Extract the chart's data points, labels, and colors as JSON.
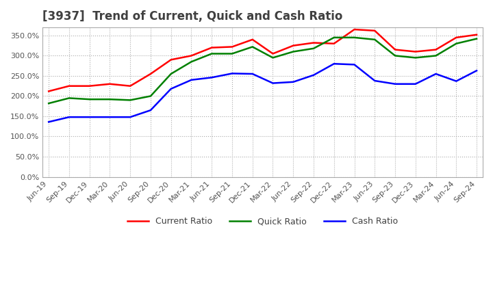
{
  "title": "[3937]  Trend of Current, Quick and Cash Ratio",
  "x_labels": [
    "Jun-19",
    "Sep-19",
    "Dec-19",
    "Mar-20",
    "Jun-20",
    "Sep-20",
    "Dec-20",
    "Mar-21",
    "Jun-21",
    "Sep-21",
    "Dec-21",
    "Mar-22",
    "Jun-22",
    "Sep-22",
    "Dec-22",
    "Mar-23",
    "Jun-23",
    "Sep-23",
    "Dec-23",
    "Mar-24",
    "Jun-24",
    "Sep-24"
  ],
  "current_ratio": [
    212,
    225,
    225,
    230,
    225,
    255,
    290,
    300,
    320,
    322,
    340,
    305,
    325,
    332,
    330,
    365,
    362,
    315,
    310,
    315,
    345,
    352
  ],
  "quick_ratio": [
    182,
    195,
    192,
    192,
    190,
    200,
    255,
    285,
    305,
    305,
    322,
    295,
    310,
    318,
    345,
    345,
    340,
    300,
    295,
    300,
    330,
    342
  ],
  "cash_ratio": [
    136,
    148,
    148,
    148,
    148,
    165,
    218,
    240,
    246,
    256,
    255,
    232,
    235,
    252,
    280,
    278,
    238,
    230,
    230,
    255,
    237,
    263
  ],
  "current_color": "#FF0000",
  "quick_color": "#008000",
  "cash_color": "#0000FF",
  "ylim": [
    0,
    370
  ],
  "yticks": [
    0,
    50,
    100,
    150,
    200,
    250,
    300,
    350
  ],
  "background_color": "#FFFFFF",
  "grid_color": "#AAAAAA",
  "title_color": "#404040",
  "title_fontsize": 12,
  "legend_labels": [
    "Current Ratio",
    "Quick Ratio",
    "Cash Ratio"
  ]
}
